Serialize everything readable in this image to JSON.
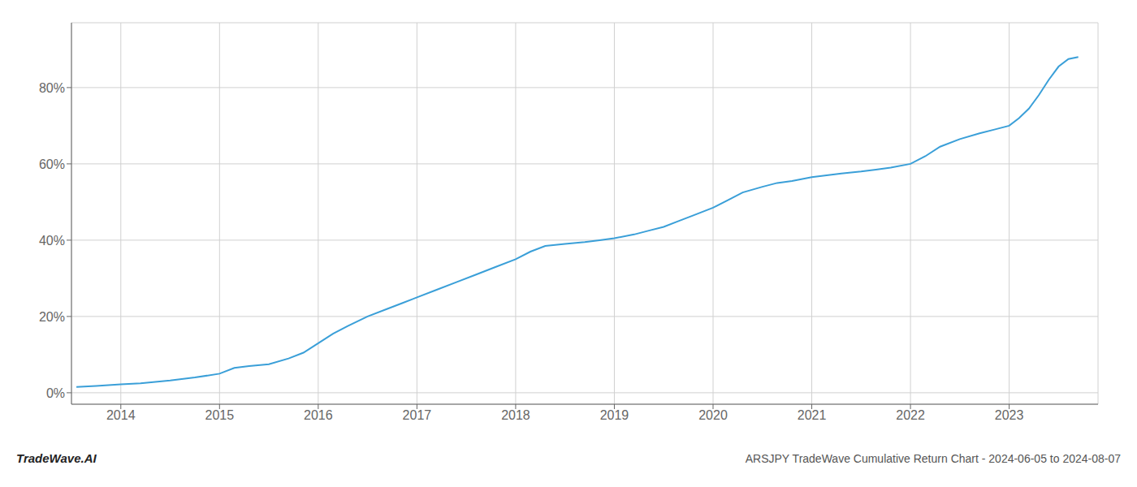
{
  "chart_data": {
    "type": "line",
    "title": "ARSJPY TradeWave Cumulative Return Chart - 2024-06-05 to 2024-08-07",
    "annotations": [
      "TradeWave.AI"
    ],
    "x": [
      2013.55,
      2013.75,
      2014.0,
      2014.2,
      2014.5,
      2014.75,
      2015.0,
      2015.15,
      2015.3,
      2015.5,
      2015.7,
      2015.85,
      2016.0,
      2016.15,
      2016.3,
      2016.5,
      2016.7,
      2016.85,
      2017.0,
      2017.2,
      2017.4,
      2017.6,
      2017.8,
      2018.0,
      2018.15,
      2018.3,
      2018.5,
      2018.7,
      2018.85,
      2019.0,
      2019.2,
      2019.35,
      2019.5,
      2019.65,
      2019.8,
      2020.0,
      2020.15,
      2020.3,
      2020.5,
      2020.65,
      2020.8,
      2021.0,
      2021.15,
      2021.3,
      2021.5,
      2021.65,
      2021.8,
      2022.0,
      2022.15,
      2022.3,
      2022.5,
      2022.7,
      2022.85,
      2023.0,
      2023.1,
      2023.2,
      2023.3,
      2023.4,
      2023.5,
      2023.6,
      2023.7
    ],
    "values": [
      1.5,
      1.8,
      2.2,
      2.5,
      3.2,
      4.0,
      5.0,
      6.5,
      7.0,
      7.5,
      9.0,
      10.5,
      13.0,
      15.5,
      17.5,
      20.0,
      22.0,
      23.5,
      25.0,
      27.0,
      29.0,
      31.0,
      33.0,
      35.0,
      37.0,
      38.5,
      39.0,
      39.5,
      40.0,
      40.5,
      41.5,
      42.5,
      43.5,
      45.0,
      46.5,
      48.5,
      50.5,
      52.5,
      54.0,
      55.0,
      55.5,
      56.5,
      57.0,
      57.5,
      58.0,
      58.5,
      59.0,
      60.0,
      62.0,
      64.5,
      66.5,
      68.0,
      69.0,
      70.0,
      72.0,
      74.5,
      78.0,
      82.0,
      85.5,
      87.5,
      88.0
    ],
    "color": "#3a9fd8",
    "xlim": [
      2013.5,
      2023.9
    ],
    "xticks": [
      2014,
      2015,
      2016,
      2017,
      2018,
      2019,
      2020,
      2021,
      2022,
      2023
    ],
    "ylim": [
      -3,
      97
    ],
    "yticks": [
      {
        "value": 0,
        "label": "0%"
      },
      {
        "value": 20,
        "label": "20%"
      },
      {
        "value": 40,
        "label": "40%"
      },
      {
        "value": 60,
        "label": "60%"
      },
      {
        "value": 80,
        "label": "80%"
      }
    ],
    "grid": true
  }
}
